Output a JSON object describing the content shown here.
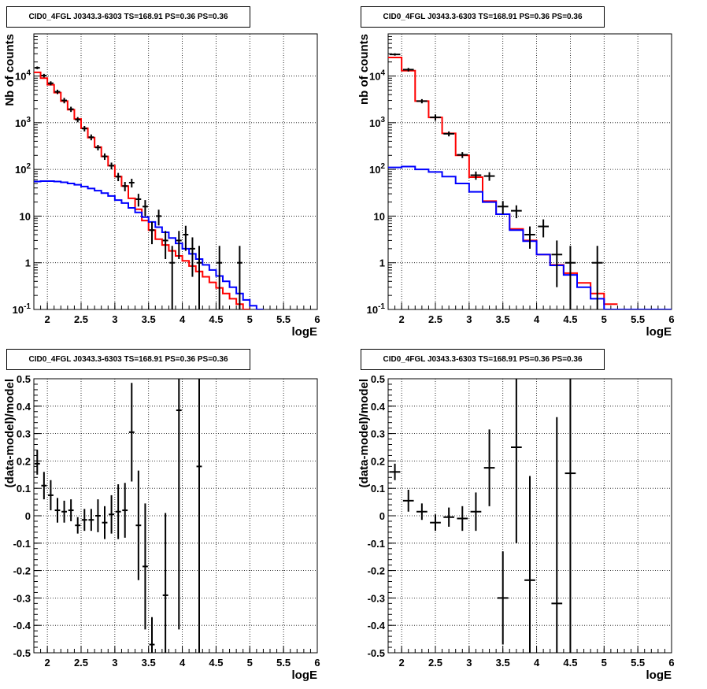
{
  "chart_data": [
    {
      "id": "tl",
      "type": "step",
      "title": "CID0_4FGL J0343.3-6303 TS=168.91 PS=0.36 PS=0.36",
      "xlabel": "logE",
      "ylabel": "Nb of counts",
      "xlim": [
        1.8,
        6
      ],
      "ylim": [
        0.1,
        80000
      ],
      "yscale": "log",
      "grid": true,
      "x_ticks": [
        "2",
        "2.5",
        "3",
        "3.5",
        "4",
        "4.5",
        "5",
        "5.5",
        "6"
      ],
      "y_ticks": [
        "10^-1",
        "1",
        "10",
        "10^2",
        "10^3",
        "10^4"
      ],
      "series": [
        {
          "color": "#ff0000",
          "bin_width": 0.1,
          "x_start": 1.8,
          "values": [
            12000,
            9000,
            6500,
            4400,
            2900,
            1900,
            1200,
            760,
            480,
            300,
            190,
            120,
            70,
            44,
            24,
            14,
            8,
            5,
            3.2,
            2.4,
            1.8,
            1.4,
            1.1,
            0.85,
            0.65,
            0.5,
            0.38,
            0.29,
            0.22,
            0.17,
            0.13,
            0.1
          ]
        },
        {
          "color": "#0000ff",
          "bin_width": 0.1,
          "x_start": 1.8,
          "values": [
            55,
            56,
            56,
            55,
            53,
            50,
            47,
            43,
            39,
            35,
            31,
            27,
            22,
            19,
            15,
            12,
            9.5,
            7.5,
            5.8,
            4.5,
            3.4,
            2.6,
            2.0,
            1.55,
            1.2,
            0.9,
            0.7,
            0.52,
            0.4,
            0.3,
            0.22,
            0.16,
            0.12,
            0.1
          ]
        }
      ],
      "data_points": [
        {
          "x": 1.85,
          "y": 15000,
          "e": [
            -1000,
            1000
          ]
        },
        {
          "x": 1.95,
          "y": 10200,
          "e": [
            -900,
            900
          ]
        },
        {
          "x": 2.05,
          "y": 7000,
          "e": [
            -700,
            700
          ]
        },
        {
          "x": 2.15,
          "y": 4600,
          "e": [
            -500,
            500
          ]
        },
        {
          "x": 2.25,
          "y": 3000,
          "e": [
            -400,
            400
          ]
        },
        {
          "x": 2.35,
          "y": 1950,
          "e": [
            -250,
            250
          ]
        },
        {
          "x": 2.45,
          "y": 1170,
          "e": [
            -150,
            150
          ]
        },
        {
          "x": 2.55,
          "y": 750,
          "e": [
            -100,
            100
          ]
        },
        {
          "x": 2.65,
          "y": 490,
          "e": [
            -70,
            70
          ]
        },
        {
          "x": 2.75,
          "y": 295,
          "e": [
            -40,
            40
          ]
        },
        {
          "x": 2.85,
          "y": 190,
          "e": [
            -30,
            30
          ]
        },
        {
          "x": 2.95,
          "y": 120,
          "e": [
            -20,
            20
          ]
        },
        {
          "x": 3.05,
          "y": 70,
          "e": [
            -14,
            14
          ]
        },
        {
          "x": 3.15,
          "y": 44,
          "e": [
            -10,
            10
          ]
        },
        {
          "x": 3.25,
          "y": 52,
          "e": [
            -11,
            11
          ]
        },
        {
          "x": 3.35,
          "y": 23,
          "e": [
            -7,
            7
          ]
        },
        {
          "x": 3.45,
          "y": 16,
          "e": [
            -6,
            6
          ]
        },
        {
          "x": 3.55,
          "y": 5,
          "e": [
            -2.5,
            2.5
          ]
        },
        {
          "x": 3.65,
          "y": 10,
          "e": [
            -3.7,
            3.7
          ]
        },
        {
          "x": 3.75,
          "y": 3,
          "e": [
            -1.8,
            1.8
          ]
        },
        {
          "x": 3.85,
          "y": 1,
          "e": [
            -0.9,
            1.3
          ]
        },
        {
          "x": 3.95,
          "y": 3,
          "e": [
            -1.8,
            1.8
          ]
        },
        {
          "x": 4.05,
          "y": 4,
          "e": [
            -2.2,
            2.2
          ]
        },
        {
          "x": 4.15,
          "y": 2,
          "e": [
            -1.5,
            1.5
          ]
        },
        {
          "x": 4.25,
          "y": 1,
          "e": [
            -0.9,
            1.3
          ]
        },
        {
          "x": 4.55,
          "y": 1,
          "e": [
            -0.9,
            1.3
          ]
        },
        {
          "x": 4.85,
          "y": 1,
          "e": [
            -0.9,
            1.3
          ]
        }
      ]
    },
    {
      "id": "tr",
      "type": "step",
      "title": "CID0_4FGL J0343.3-6303 TS=168.91 PS=0.36 PS=0.36",
      "xlabel": "logE",
      "ylabel": "nb of counts",
      "xlim": [
        1.8,
        6
      ],
      "ylim": [
        0.1,
        80000
      ],
      "yscale": "log",
      "grid": true,
      "x_ticks": [
        "2",
        "2.5",
        "3",
        "3.5",
        "4",
        "4.5",
        "5",
        "5.5",
        "6"
      ],
      "y_ticks": [
        "10^-1",
        "1",
        "10",
        "10^2",
        "10^3",
        "10^4"
      ],
      "series": [
        {
          "color": "#ff0000",
          "bin_width": 0.2,
          "x_start": 1.8,
          "values": [
            25000,
            13000,
            2900,
            1300,
            590,
            200,
            68,
            21,
            11,
            5.3,
            3.0,
            1.5,
            0.9,
            0.6,
            0.37,
            0.22,
            0.13
          ]
        },
        {
          "color": "#0000ff",
          "bin_width": 0.2,
          "x_start": 1.8,
          "values": [
            110,
            115,
            100,
            88,
            70,
            50,
            33,
            20,
            11,
            5,
            2.9,
            1.5,
            0.88,
            0.55,
            0.3,
            0.17,
            0.1,
            0.1,
            0.1,
            0.1,
            0.1
          ]
        }
      ],
      "data_points": [
        {
          "x": 1.9,
          "y": 29000,
          "e": [
            -1700,
            1700
          ]
        },
        {
          "x": 2.1,
          "y": 13700,
          "e": [
            -1200,
            1200
          ]
        },
        {
          "x": 2.3,
          "y": 2900,
          "e": [
            -300,
            300
          ]
        },
        {
          "x": 2.5,
          "y": 1300,
          "e": [
            -200,
            200
          ]
        },
        {
          "x": 2.7,
          "y": 580,
          "e": [
            -70,
            70
          ]
        },
        {
          "x": 2.9,
          "y": 205,
          "e": [
            -30,
            30
          ]
        },
        {
          "x": 3.1,
          "y": 75,
          "e": [
            -15,
            15
          ]
        },
        {
          "x": 3.3,
          "y": 72,
          "e": [
            -15,
            15
          ]
        },
        {
          "x": 3.5,
          "y": 16,
          "e": [
            -5,
            5
          ]
        },
        {
          "x": 3.7,
          "y": 13,
          "e": [
            -4,
            4
          ]
        },
        {
          "x": 3.9,
          "y": 4,
          "e": [
            -2,
            2
          ]
        },
        {
          "x": 4.1,
          "y": 6,
          "e": [
            -2.5,
            2.5
          ]
        },
        {
          "x": 4.3,
          "y": 1.5,
          "e": [
            -1.2,
            1.5
          ]
        },
        {
          "x": 4.5,
          "y": 1,
          "e": [
            -0.9,
            1.3
          ]
        },
        {
          "x": 4.9,
          "y": 1,
          "e": [
            -0.9,
            1.3
          ]
        }
      ]
    },
    {
      "id": "bl",
      "type": "errorbar",
      "title": "CID0_4FGL J0343.3-6303 TS=168.91 PS=0.36 PS=0.36",
      "xlabel": "logE",
      "ylabel": "(data-model)/model",
      "xlim": [
        1.8,
        6
      ],
      "ylim": [
        -0.5,
        0.5
      ],
      "yscale": "linear",
      "grid": true,
      "x_ticks": [
        "2",
        "2.5",
        "3",
        "3.5",
        "4",
        "4.5",
        "5",
        "5.5",
        "6"
      ],
      "y_ticks": [
        "-0.5",
        "-0.4",
        "-0.3",
        "-0.2",
        "-0.1",
        "0",
        "0.1",
        "0.2",
        "0.3",
        "0.4",
        "0.5"
      ],
      "bin_width": 0.1,
      "data_points": [
        {
          "x": 1.85,
          "y": 0.19,
          "e": [
            -0.04,
            0.05
          ]
        },
        {
          "x": 1.95,
          "y": 0.11,
          "e": [
            -0.05,
            0.05
          ]
        },
        {
          "x": 2.05,
          "y": 0.075,
          "e": [
            -0.055,
            0.055
          ]
        },
        {
          "x": 2.15,
          "y": 0.02,
          "e": [
            -0.045,
            0.045
          ]
        },
        {
          "x": 2.25,
          "y": 0.015,
          "e": [
            -0.04,
            0.04
          ]
        },
        {
          "x": 2.35,
          "y": 0.02,
          "e": [
            -0.04,
            0.04
          ]
        },
        {
          "x": 2.45,
          "y": -0.035,
          "e": [
            -0.03,
            0.03
          ]
        },
        {
          "x": 2.55,
          "y": -0.015,
          "e": [
            -0.04,
            0.04
          ]
        },
        {
          "x": 2.65,
          "y": -0.015,
          "e": [
            -0.04,
            0.04
          ]
        },
        {
          "x": 2.75,
          "y": 0.0,
          "e": [
            -0.06,
            0.06
          ]
        },
        {
          "x": 2.85,
          "y": -0.025,
          "e": [
            -0.06,
            0.06
          ]
        },
        {
          "x": 2.95,
          "y": 0.005,
          "e": [
            -0.07,
            0.07
          ]
        },
        {
          "x": 3.05,
          "y": 0.015,
          "e": [
            -0.1,
            0.1
          ]
        },
        {
          "x": 3.15,
          "y": 0.02,
          "e": [
            -0.1,
            0.1
          ]
        },
        {
          "x": 3.25,
          "y": 0.305,
          "e": [
            -0.18,
            0.18
          ]
        },
        {
          "x": 3.35,
          "y": -0.035,
          "e": [
            -0.2,
            0.2
          ]
        },
        {
          "x": 3.45,
          "y": -0.185,
          "e": [
            -0.23,
            0.23
          ]
        },
        {
          "x": 3.55,
          "y": -0.47,
          "e": [
            -0.1,
            0.1
          ]
        },
        {
          "x": 3.75,
          "y": -0.29,
          "e": [
            -0.3,
            0.3
          ]
        },
        {
          "x": 3.95,
          "y": 0.385,
          "e": [
            -0.8,
            0.6
          ]
        },
        {
          "x": 4.25,
          "y": 0.18,
          "e": [
            -1.0,
            1.0
          ]
        }
      ]
    },
    {
      "id": "br",
      "type": "errorbar",
      "title": "CID0_4FGL J0343.3-6303 TS=168.91 PS=0.36 PS=0.36",
      "xlabel": "logE",
      "ylabel": "(data-model)/model",
      "xlim": [
        1.8,
        6
      ],
      "ylim": [
        -0.5,
        0.5
      ],
      "yscale": "linear",
      "grid": true,
      "x_ticks": [
        "2",
        "2.5",
        "3",
        "3.5",
        "4",
        "4.5",
        "5",
        "5.5",
        "6"
      ],
      "y_ticks": [
        "-0.5",
        "-0.4",
        "-0.3",
        "-0.2",
        "-0.1",
        "0",
        "0.1",
        "0.2",
        "0.3",
        "0.4",
        "0.5"
      ],
      "bin_width": 0.2,
      "data_points": [
        {
          "x": 1.9,
          "y": 0.16,
          "e": [
            -0.03,
            0.03
          ]
        },
        {
          "x": 2.1,
          "y": 0.055,
          "e": [
            -0.04,
            0.04
          ]
        },
        {
          "x": 2.3,
          "y": 0.015,
          "e": [
            -0.03,
            0.03
          ]
        },
        {
          "x": 2.5,
          "y": -0.025,
          "e": [
            -0.03,
            0.03
          ]
        },
        {
          "x": 2.7,
          "y": -0.005,
          "e": [
            -0.035,
            0.035
          ]
        },
        {
          "x": 2.9,
          "y": -0.01,
          "e": [
            -0.045,
            0.045
          ]
        },
        {
          "x": 3.1,
          "y": 0.015,
          "e": [
            -0.07,
            0.07
          ]
        },
        {
          "x": 3.3,
          "y": 0.175,
          "e": [
            -0.14,
            0.14
          ]
        },
        {
          "x": 3.5,
          "y": -0.3,
          "e": [
            -0.17,
            0.17
          ]
        },
        {
          "x": 3.7,
          "y": 0.25,
          "e": [
            -0.35,
            0.35
          ]
        },
        {
          "x": 3.9,
          "y": -0.235,
          "e": [
            -0.38,
            0.38
          ]
        },
        {
          "x": 4.3,
          "y": -0.32,
          "e": [
            -0.68,
            0.68
          ]
        },
        {
          "x": 4.5,
          "y": 0.155,
          "e": [
            -0.9,
            0.9
          ]
        }
      ]
    }
  ]
}
